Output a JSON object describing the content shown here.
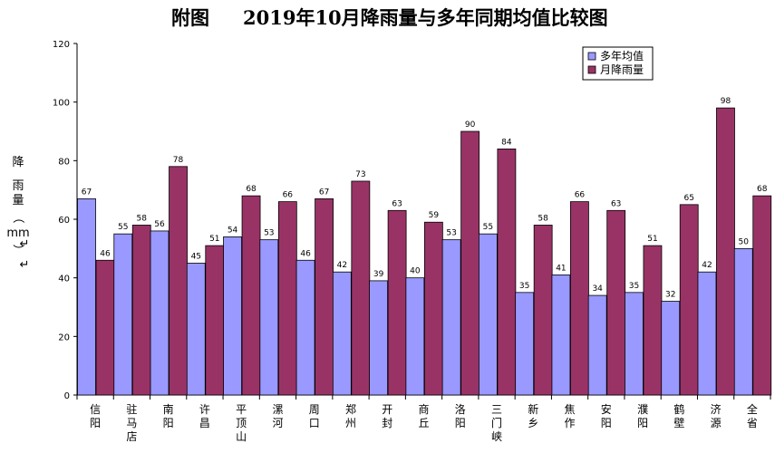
{
  "chart_data": {
    "type": "bar",
    "title_prefix": "附图",
    "title": "2019年10月降雨量与多年同期均值比较图",
    "ylabel": [
      "降",
      "雨",
      "量",
      "（",
      "mm",
      "↵",
      "）",
      "↵"
    ],
    "ylim": [
      0,
      120
    ],
    "yticks": [
      0,
      20,
      40,
      60,
      80,
      100,
      120
    ],
    "legend_position": "top-right",
    "categories": [
      "信阳",
      "驻马店",
      "南阳",
      "许昌",
      "平顶山",
      "漯河",
      "周口",
      "郑州",
      "开封",
      "商丘",
      "洛阳",
      "三门峡",
      "新乡",
      "焦作",
      "安阳",
      "濮阳",
      "鹤壁",
      "济源",
      "全省"
    ],
    "series": [
      {
        "name": "多年均值",
        "color": "#9999ff",
        "values": [
          67,
          55,
          56,
          45,
          54,
          53,
          46,
          42,
          39,
          40,
          53,
          55,
          35,
          41,
          34,
          35,
          32,
          42,
          50
        ]
      },
      {
        "name": "月降雨量",
        "color": "#993366",
        "values": [
          46,
          58,
          78,
          51,
          68,
          66,
          67,
          73,
          63,
          59,
          90,
          84,
          58,
          66,
          63,
          51,
          65,
          98,
          68
        ]
      }
    ]
  }
}
